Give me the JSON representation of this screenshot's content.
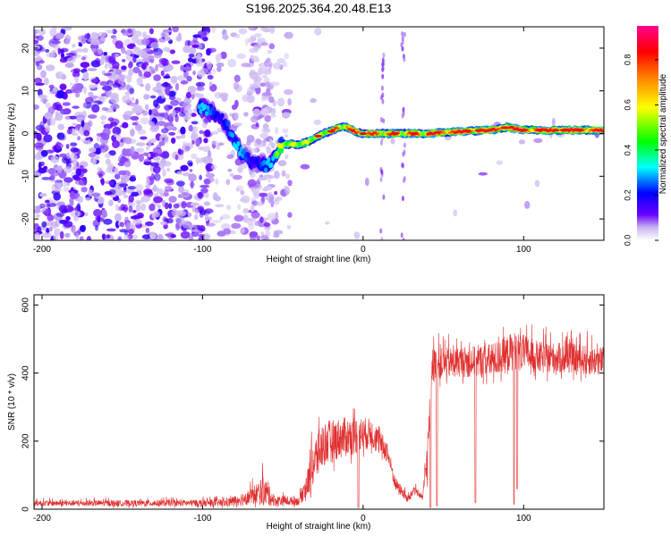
{
  "title": "S196.2025.364.20.48.E13",
  "chart_data": [
    {
      "type": "heatmap",
      "name": "spectrogram",
      "xlabel": "Height of straight line (km)",
      "ylabel": "Frequency (Hz)",
      "xlim": [
        -205,
        150
      ],
      "ylim": [
        -25,
        25
      ],
      "xticks": [
        -200,
        -100,
        0,
        100
      ],
      "yticks": [
        -20,
        -10,
        0,
        10,
        20
      ],
      "ridge": [
        {
          "x": -100,
          "y": 6
        },
        {
          "x": -95,
          "y": 5.5
        },
        {
          "x": -90,
          "y": 4
        },
        {
          "x": -85,
          "y": 2
        },
        {
          "x": -80,
          "y": -2
        },
        {
          "x": -75,
          "y": -5
        },
        {
          "x": -70,
          "y": -6.5
        },
        {
          "x": -65,
          "y": -7
        },
        {
          "x": -60,
          "y": -8
        },
        {
          "x": -55,
          "y": -5
        },
        {
          "x": -50,
          "y": -2.5
        },
        {
          "x": -45,
          "y": -2.5
        },
        {
          "x": -40,
          "y": -2.5
        },
        {
          "x": -35,
          "y": -2
        },
        {
          "x": -30,
          "y": -1
        },
        {
          "x": -25,
          "y": 0
        },
        {
          "x": -20,
          "y": 0.5
        },
        {
          "x": -15,
          "y": 1.5
        },
        {
          "x": -10,
          "y": 1.5
        },
        {
          "x": -5,
          "y": 0.5
        },
        {
          "x": 0,
          "y": 0
        },
        {
          "x": 20,
          "y": 0
        },
        {
          "x": 40,
          "y": 0
        },
        {
          "x": 60,
          "y": 0.5
        },
        {
          "x": 80,
          "y": 0.8
        },
        {
          "x": 90,
          "y": 1.5
        },
        {
          "x": 100,
          "y": 0.8
        },
        {
          "x": 120,
          "y": 0.8
        },
        {
          "x": 150,
          "y": 0.8
        }
      ],
      "colorbar": {
        "label": "Normalized spectral amplitude",
        "range": [
          0,
          0.95
        ],
        "ticks": [
          "0.0",
          "0.2",
          "0.4",
          "0.6",
          "0.8"
        ],
        "colors": [
          "#ffffff",
          "#c8b4f0",
          "#6a00ff",
          "#0000ff",
          "#00ffff",
          "#00ff00",
          "#ffff00",
          "#ff8000",
          "#ff0000",
          "#ff0090"
        ]
      }
    },
    {
      "type": "line",
      "name": "snr",
      "xlabel": "Height of straight line (km)",
      "ylabel": "SNR (10 * v/v)",
      "xlim": [
        -205,
        150
      ],
      "ylim": [
        0,
        630
      ],
      "xticks": [
        -200,
        -100,
        0,
        100
      ],
      "yticks": [
        0,
        200,
        400,
        600
      ],
      "color": "#e03030",
      "envelope": [
        {
          "x": -205,
          "base": 15,
          "amp": 20
        },
        {
          "x": -100,
          "base": 15,
          "amp": 25
        },
        {
          "x": -85,
          "base": 15,
          "amp": 30
        },
        {
          "x": -70,
          "base": 30,
          "amp": 60
        },
        {
          "x": -62,
          "base": 40,
          "amp": 110
        },
        {
          "x": -55,
          "base": 20,
          "amp": 40
        },
        {
          "x": -40,
          "base": 20,
          "amp": 30
        },
        {
          "x": -35,
          "base": 60,
          "amp": 100
        },
        {
          "x": -30,
          "base": 120,
          "amp": 180
        },
        {
          "x": -25,
          "base": 170,
          "amp": 170
        },
        {
          "x": -15,
          "base": 190,
          "amp": 150
        },
        {
          "x": -5,
          "base": 200,
          "amp": 140
        },
        {
          "x": 5,
          "base": 210,
          "amp": 110
        },
        {
          "x": 15,
          "base": 160,
          "amp": 80
        },
        {
          "x": 20,
          "base": 70,
          "amp": 50
        },
        {
          "x": 28,
          "base": 25,
          "amp": 30
        },
        {
          "x": 32,
          "base": 55,
          "amp": 30
        },
        {
          "x": 37,
          "base": 30,
          "amp": 20
        },
        {
          "x": 40,
          "base": 130,
          "amp": 150
        },
        {
          "x": 43,
          "base": 410,
          "amp": 120
        },
        {
          "x": 60,
          "base": 420,
          "amp": 110
        },
        {
          "x": 80,
          "base": 420,
          "amp": 130
        },
        {
          "x": 95,
          "base": 450,
          "amp": 140
        },
        {
          "x": 110,
          "base": 430,
          "amp": 120
        },
        {
          "x": 130,
          "base": 430,
          "amp": 110
        },
        {
          "x": 150,
          "base": 420,
          "amp": 110
        }
      ],
      "dips": [
        {
          "x": -3,
          "y": 5
        },
        {
          "x": 42,
          "y": 5
        },
        {
          "x": 46,
          "y": 10
        },
        {
          "x": 70,
          "y": 20
        },
        {
          "x": 94,
          "y": 15
        },
        {
          "x": 96,
          "y": 60
        }
      ]
    }
  ]
}
